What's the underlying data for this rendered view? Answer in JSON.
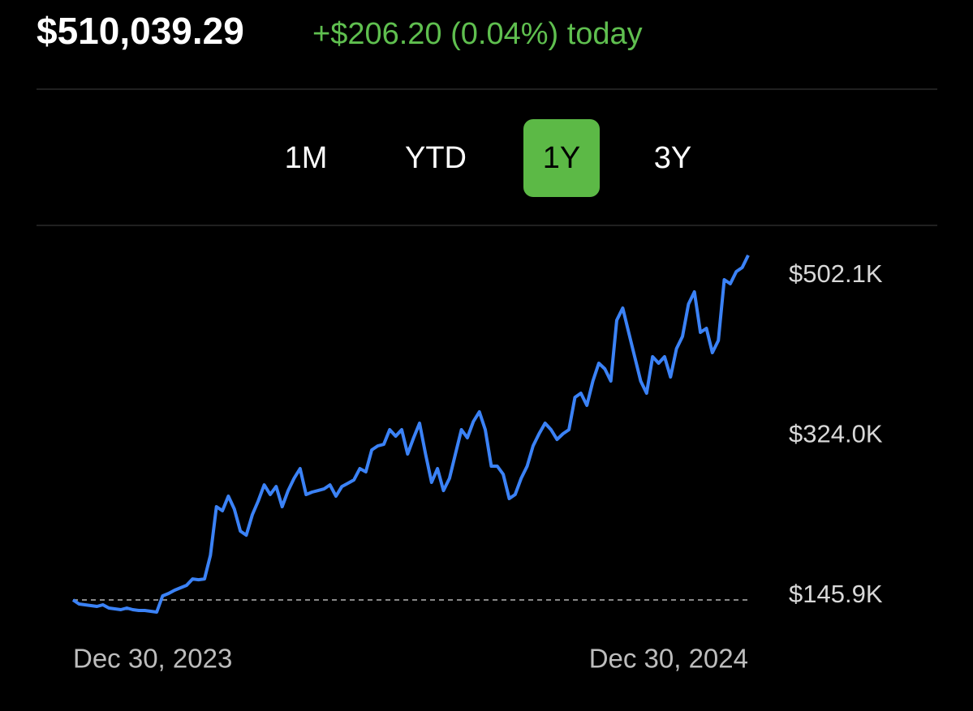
{
  "header": {
    "balance": "$510,039.29",
    "change": "+$206.20 (0.04%) today"
  },
  "tabs": {
    "items": [
      "1M",
      "YTD",
      "1Y",
      "3Y"
    ],
    "active": 2
  },
  "chart_data": {
    "type": "line",
    "categories": [
      "Dec 30, 2023",
      null,
      null,
      null,
      null,
      null,
      null,
      null,
      null,
      null,
      null,
      null,
      null,
      null,
      null,
      null,
      null,
      null,
      null,
      null,
      null,
      null,
      null,
      null,
      null,
      null,
      null,
      null,
      null,
      null,
      null,
      null,
      null,
      null,
      null,
      null,
      null,
      null,
      null,
      null,
      null,
      null,
      null,
      null,
      null,
      null,
      null,
      null,
      null,
      null,
      null,
      null,
      null,
      null,
      null,
      null,
      null,
      null,
      null,
      null,
      null,
      null,
      null,
      null,
      null,
      null,
      null,
      null,
      null,
      null,
      null,
      null,
      null,
      null,
      null,
      null,
      null,
      null,
      null,
      null,
      null,
      null,
      null,
      null,
      null,
      null,
      null,
      null,
      null,
      null,
      null,
      null,
      null,
      null,
      null,
      null,
      null,
      null,
      null,
      null,
      null,
      null,
      null,
      null,
      null,
      null,
      null,
      null,
      null,
      null,
      null,
      null,
      null,
      "Dec 30, 2024"
    ],
    "series": [
      {
        "color": "#3b82f6",
        "values": [
          141400,
          136900,
          136000,
          135100,
          134200,
          136000,
          132400,
          131500,
          130600,
          132400,
          130600,
          129700,
          129700,
          128800,
          127900,
          145900,
          148600,
          152200,
          154900,
          157600,
          164800,
          163900,
          164800,
          191000,
          245100,
          240600,
          256800,
          242400,
          218000,
          213500,
          236100,
          251400,
          269400,
          258600,
          267600,
          245100,
          263100,
          276700,
          287500,
          258600,
          261300,
          263100,
          264900,
          269400,
          256800,
          267600,
          271200,
          274900,
          287500,
          283900,
          308200,
          312700,
          314500,
          330800,
          323600,
          330800,
          303700,
          321800,
          338000,
          303700,
          272200,
          287500,
          263100,
          276700,
          303700,
          330800,
          321800,
          339800,
          350600,
          330800,
          290200,
          290200,
          281200,
          254100,
          258600,
          276700,
          290200,
          312700,
          326300,
          338000,
          330800,
          319900,
          326300,
          330800,
          366800,
          371400,
          357800,
          384900,
          404700,
          398400,
          384900,
          452500,
          466000,
          439000,
          411900,
          384900,
          371400,
          411900,
          404700,
          411900,
          389400,
          420900,
          434500,
          470500,
          484100,
          439000,
          443500,
          416400,
          430000,
          497600,
          493100,
          506600,
          511100,
          524700
        ]
      }
    ],
    "ylim": [
      114000,
      538000
    ],
    "yticks": [
      {
        "value": 145900,
        "label": "$145.9K"
      },
      {
        "value": 324000,
        "label": "$324.0K"
      },
      {
        "value": 502100,
        "label": "$502.1K"
      }
    ],
    "baseline_dashed": true
  }
}
